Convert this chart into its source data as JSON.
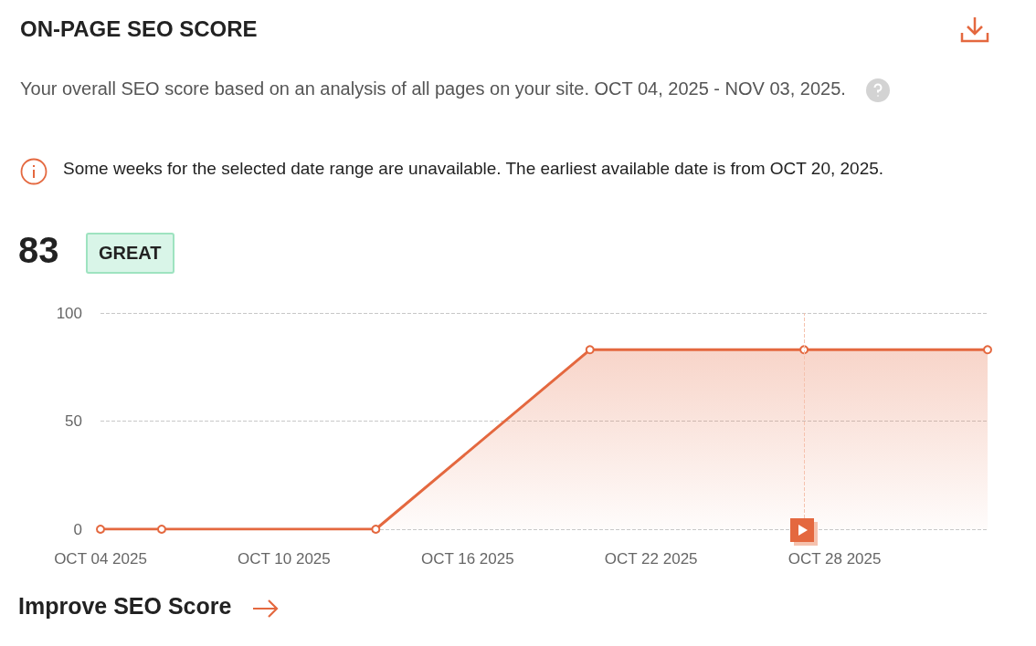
{
  "chart_data": {
    "type": "area",
    "title": "ON-PAGE SEO SCORE",
    "subtitle": "Your overall SEO score based on an analysis of all pages on your site. OCT 04, 2025 - NOV 03, 2025.",
    "annotations": [
      "Some weeks for the selected date range are unavailable. The earliest available date is from OCT 20, 2025.",
      "83",
      "GREAT",
      "Improve SEO Score"
    ],
    "x": [
      "2025-10-04",
      "2025-10-06",
      "2025-10-13",
      "2025-10-20",
      "2025-10-27",
      "2025-11-02"
    ],
    "series": [
      {
        "color": "#e4683f",
        "values": [
          0,
          0,
          0,
          83,
          83,
          83
        ]
      }
    ],
    "xlim": [
      "2025-10-04",
      "2025-11-02"
    ],
    "xticks": [
      {
        "value": "2025-10-04",
        "label": "OCT 04 2025"
      },
      {
        "value": "2025-10-10",
        "label": "OCT 10 2025"
      },
      {
        "value": "2025-10-16",
        "label": "OCT 16 2025"
      },
      {
        "value": "2025-10-22",
        "label": "OCT 22 2025"
      },
      {
        "value": "2025-10-28",
        "label": "OCT 28 2025"
      }
    ],
    "ylim": [
      0,
      100
    ],
    "yticks": [
      0,
      50,
      100
    ],
    "grid": "y",
    "marker": "circle",
    "line_style": "solid",
    "ref_lines": [
      {
        "axis": "x",
        "value": "2025-10-27",
        "color": "#f5c2ae",
        "line_style": "dashed"
      }
    ]
  }
}
